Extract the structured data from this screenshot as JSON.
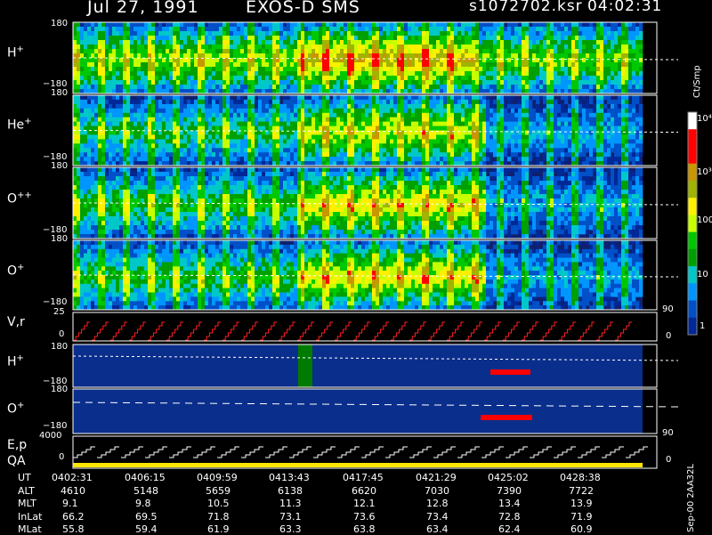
{
  "header": {
    "date": "Jul 27, 1991",
    "instrument": "EXOS-D SMS",
    "file": "s1072702.ksr",
    "time": "04:02:31"
  },
  "panels": [
    {
      "species": "H",
      "charge": "+",
      "ytop": "180",
      "ybot": "−180"
    },
    {
      "species": "He",
      "charge": "+",
      "ytop": "180",
      "ybot": "−180"
    },
    {
      "species": "O",
      "charge": "++",
      "ytop": "180",
      "ybot": "−180"
    },
    {
      "species": "O",
      "charge": "+",
      "ytop": "180",
      "ybot": "−180"
    }
  ],
  "vr_panel": {
    "label": "V,r",
    "ytop": "25",
    "ymid": "0",
    "right_top": "90",
    "right_bot": "0"
  },
  "h_lower": {
    "species": "H",
    "charge": "+",
    "ytop": "180",
    "ybot": "−180"
  },
  "o_lower": {
    "species": "O",
    "charge": "+",
    "ytop": "180",
    "ybot": "−180",
    "right_bot": "90"
  },
  "ep_panel": {
    "label1": "E,p",
    "label2": "QA",
    "ytop": "4000",
    "ymid": "0",
    "right_bot": "0"
  },
  "colorbar": {
    "unit": "Ct/Smp",
    "ticks": [
      "10⁴",
      "10³",
      "100",
      "10",
      "1"
    ],
    "colors": [
      "#ffffff",
      "#ff0000",
      "#ff0000",
      "#c89600",
      "#a0b400",
      "#fff000",
      "#c8ff00",
      "#00c800",
      "#00a000",
      "#00c8c8",
      "#0096ff",
      "#0050c8",
      "#002896"
    ]
  },
  "footer_note": "Sep-00  2AA32L",
  "table": {
    "row_labels": [
      "UT",
      "ALT",
      "MLT",
      "InLat",
      "MLat"
    ],
    "columns": [
      {
        "UT": "0402:31",
        "ALT": "4610",
        "MLT": "9.1",
        "InLat": "66.2",
        "MLat": "55.8"
      },
      {
        "UT": "0406:15",
        "ALT": "5148",
        "MLT": "9.8",
        "InLat": "69.5",
        "MLat": "59.4"
      },
      {
        "UT": "0409:59",
        "ALT": "5659",
        "MLT": "10.5",
        "InLat": "71.8",
        "MLat": "61.9"
      },
      {
        "UT": "0413:43",
        "ALT": "6138",
        "MLT": "11.3",
        "InLat": "73.1",
        "MLat": "63.3"
      },
      {
        "UT": "0417:45",
        "ALT": "6620",
        "MLT": "12.1",
        "InLat": "73.6",
        "MLat": "63.8"
      },
      {
        "UT": "0421:29",
        "ALT": "7030",
        "MLT": "12.8",
        "InLat": "73.4",
        "MLat": "63.4"
      },
      {
        "UT": "0425:02",
        "ALT": "7390",
        "MLT": "13.4",
        "InLat": "72.8",
        "MLat": "62.4"
      },
      {
        "UT": "0428:38",
        "ALT": "7722",
        "MLT": "13.9",
        "InLat": "71.9",
        "MLat": "60.9"
      }
    ]
  },
  "chart_data": {
    "type": "heatmap",
    "xlabel": "UT",
    "time_ticks": [
      "0402:31",
      "0406:15",
      "0409:59",
      "0413:43",
      "0417:45",
      "0421:29",
      "0425:02",
      "0428:38"
    ],
    "pitch_range": [
      -180,
      180
    ],
    "series": [
      {
        "name": "H+",
        "pitch_range": [
          -180,
          180
        ]
      },
      {
        "name": "He+",
        "pitch_range": [
          -180,
          180
        ]
      },
      {
        "name": "O++",
        "pitch_range": [
          -180,
          180
        ]
      },
      {
        "name": "O+",
        "pitch_range": [
          -180,
          180
        ]
      }
    ],
    "vr_range": [
      0,
      25
    ],
    "ep_range": [
      0,
      4000
    ],
    "counts_scale": "log",
    "counts_range": [
      1,
      10000
    ]
  }
}
